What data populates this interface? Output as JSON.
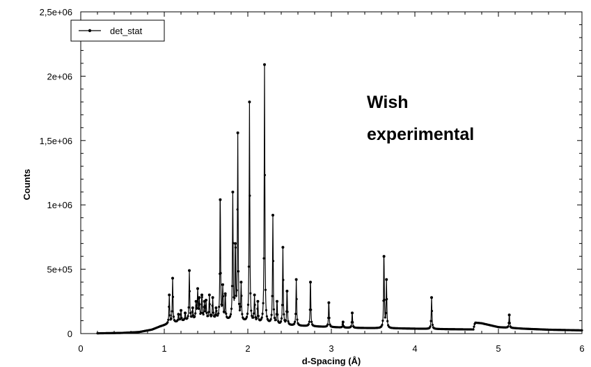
{
  "chart_data": {
    "type": "line",
    "title": "",
    "xlabel": "d-Spacing (Å)",
    "ylabel": "Counts",
    "xlim": [
      0,
      6
    ],
    "ylim": [
      0,
      2500000
    ],
    "x_ticks": [
      0,
      1,
      2,
      3,
      4,
      5,
      6
    ],
    "x_tick_labels": [
      "0",
      "1",
      "2",
      "3",
      "4",
      "5",
      "6"
    ],
    "y_ticks": [
      0,
      500000,
      1000000,
      1500000,
      2000000,
      2500000
    ],
    "y_tick_labels": [
      "0",
      "5e+05",
      "1e+06",
      "1,5e+06",
      "2e+06",
      "2,5e+06"
    ],
    "grid": false,
    "legend": {
      "position": "top-left"
    },
    "annotation": {
      "lines": [
        "Wish",
        "experimental"
      ]
    },
    "baseline": [
      [
        0.2,
        2000
      ],
      [
        0.5,
        5000
      ],
      [
        0.7,
        12000
      ],
      [
        0.85,
        30000
      ],
      [
        0.95,
        55000
      ],
      [
        1.05,
        75000
      ],
      [
        1.2,
        95000
      ],
      [
        1.4,
        110000
      ],
      [
        1.6,
        110000
      ],
      [
        1.8,
        100000
      ],
      [
        2.0,
        85000
      ],
      [
        2.2,
        75000
      ],
      [
        2.4,
        65000
      ],
      [
        2.6,
        60000
      ],
      [
        2.8,
        55000
      ],
      [
        3.0,
        50000
      ],
      [
        3.2,
        45000
      ],
      [
        3.5,
        42000
      ],
      [
        3.8,
        40000
      ],
      [
        4.1,
        37000
      ],
      [
        4.4,
        34000
      ],
      [
        4.7,
        32000
      ],
      [
        4.72,
        85000
      ],
      [
        4.8,
        80000
      ],
      [
        4.9,
        65000
      ],
      [
        5.0,
        50000
      ],
      [
        5.3,
        38000
      ],
      [
        5.6,
        30000
      ],
      [
        6.0,
        25000
      ]
    ],
    "series": [
      {
        "name": "det_stat",
        "color": "#000000",
        "peaks": [
          [
            1.06,
            300000
          ],
          [
            1.1,
            430000
          ],
          [
            1.17,
            150000
          ],
          [
            1.2,
            180000
          ],
          [
            1.25,
            160000
          ],
          [
            1.3,
            490000
          ],
          [
            1.34,
            200000
          ],
          [
            1.38,
            250000
          ],
          [
            1.4,
            350000
          ],
          [
            1.42,
            280000
          ],
          [
            1.45,
            300000
          ],
          [
            1.48,
            250000
          ],
          [
            1.5,
            260000
          ],
          [
            1.54,
            300000
          ],
          [
            1.58,
            280000
          ],
          [
            1.62,
            200000
          ],
          [
            1.67,
            1040000
          ],
          [
            1.7,
            380000
          ],
          [
            1.73,
            310000
          ],
          [
            1.82,
            1100000
          ],
          [
            1.85,
            700000
          ],
          [
            1.88,
            1560000
          ],
          [
            1.92,
            400000
          ],
          [
            2.02,
            1800000
          ],
          [
            2.08,
            300000
          ],
          [
            2.12,
            250000
          ],
          [
            2.2,
            2090000
          ],
          [
            2.3,
            920000
          ],
          [
            2.35,
            250000
          ],
          [
            2.42,
            670000
          ],
          [
            2.47,
            330000
          ],
          [
            2.58,
            420000
          ],
          [
            2.75,
            400000
          ],
          [
            2.97,
            240000
          ],
          [
            3.14,
            90000
          ],
          [
            3.25,
            160000
          ],
          [
            3.63,
            600000
          ],
          [
            3.66,
            420000
          ],
          [
            4.2,
            280000
          ],
          [
            5.13,
            145000
          ]
        ]
      }
    ]
  }
}
